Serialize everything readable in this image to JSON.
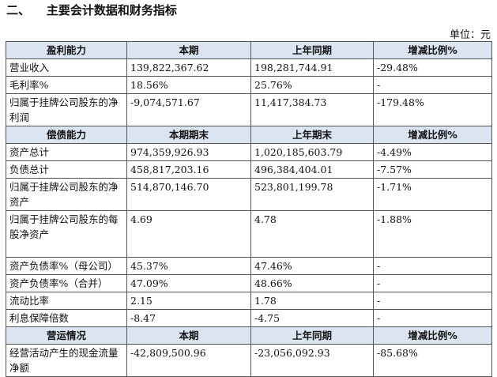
{
  "header": {
    "title": "二、    主要会计数据和财务指标",
    "unit": "单位：元"
  },
  "table": {
    "sections": [
      {
        "header": [
          "盈利能力",
          "本期",
          "上年同期",
          "增减比例%"
        ],
        "rows": [
          [
            "营业收入",
            "139,822,367.62",
            "198,281,744.91",
            "-29.48%"
          ],
          [
            "毛利率%",
            "18.56%",
            "25.76%",
            "-"
          ],
          [
            "归属于挂牌公司股东的净利润",
            "-9,074,571.67",
            "11,417,384.73",
            "-179.48%"
          ]
        ]
      },
      {
        "header": [
          "偿债能力",
          "本期期末",
          "上年期末",
          "增减比例%"
        ],
        "rows": [
          [
            "资产总计",
            "974,359,926.93",
            "1,020,185,603.79",
            "-4.49%"
          ],
          [
            "负债总计",
            "458,817,203.16",
            "496,384,404.01",
            "-7.57%"
          ],
          [
            "归属于挂牌公司股东的净资产",
            "514,870,146.70",
            "523,801,199.78",
            "-1.71%"
          ],
          [
            "归属于挂牌公司股东的每股净资产",
            "4.69",
            "4.78",
            "-1.88%"
          ],
          [
            "资产负债率%（母公司）",
            "45.37%",
            "47.46%",
            "-"
          ],
          [
            "资产负债率%（合并）",
            "47.09%",
            "48.66%",
            "-"
          ],
          [
            "流动比率",
            "2.15",
            "1.78",
            "-"
          ],
          [
            "利息保障倍数",
            "-8.47",
            "-4.75",
            "-"
          ]
        ]
      },
      {
        "header": [
          "营运情况",
          "本期",
          "上年同期",
          "增减比例%"
        ],
        "rows": [
          [
            "经营活动产生的现金流量净额",
            "-42,809,500.96",
            "-23,056,092.93",
            "-85.68%"
          ]
        ]
      }
    ]
  }
}
